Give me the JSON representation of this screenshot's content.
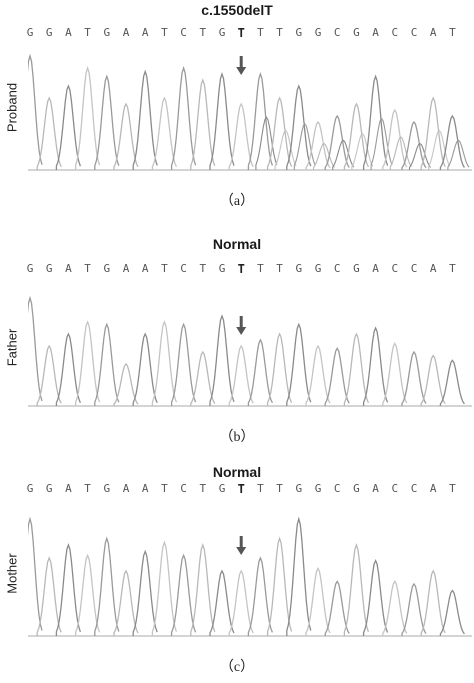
{
  "bases": [
    "G",
    "G",
    "A",
    "T",
    "G",
    "A",
    "A",
    "T",
    "C",
    "T",
    "G",
    "T",
    "T",
    "T",
    "G",
    "G",
    "C",
    "G",
    "A",
    "C",
    "C",
    "A",
    "T"
  ],
  "mutation_index": 11,
  "panels": [
    {
      "title": "c.1550delT",
      "label": "Proband",
      "caption": "（a）"
    },
    {
      "title": "Normal",
      "label": "Father",
      "caption": "（b）"
    },
    {
      "title": "Normal",
      "label": "Mother",
      "caption": "（c）"
    }
  ],
  "colors": {
    "trace": "#9a9a9a",
    "arrow": "#555555"
  }
}
